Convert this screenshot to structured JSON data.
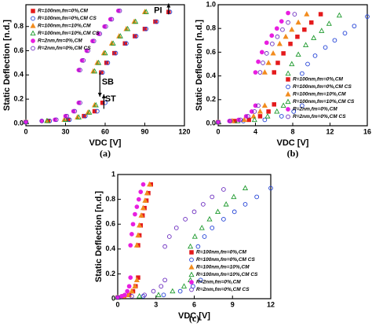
{
  "chart_data": [
    {
      "type": "scatter",
      "title": "(a)",
      "xlabel": "VDC [V]",
      "ylabel": "Static Deflection [n.d.]",
      "xlim": [
        0,
        120
      ],
      "xticks": [
        0,
        30,
        60,
        90,
        120
      ],
      "ylim": [
        -0.02,
        0.98
      ],
      "yticks": [
        {
          "value": 0,
          "label": "0.0"
        },
        0.2,
        0.4,
        0.6,
        0.8
      ],
      "legend": "upper left",
      "annotations": [
        "PI",
        "SB",
        "ST"
      ],
      "series": [
        {
          "name": "R=100nm,fm=0%,CM",
          "color": "#e41a1c",
          "marker": "square",
          "filled": true,
          "x": [
            0,
            17,
            32,
            44,
            52,
            58,
            57,
            61,
            67,
            75,
            82.5,
            90,
            98,
            108
          ],
          "values": [
            0.01,
            0.02,
            0.03,
            0.06,
            0.1,
            0.17,
            0.42,
            0.5,
            0.58,
            0.66,
            0.72,
            0.78,
            0.84,
            0.92
          ]
        },
        {
          "name": "R=100nm,fm=0%,CM CS",
          "color": "#1f3fd6",
          "marker": "circle",
          "filled": false,
          "x": [
            0,
            18,
            33,
            45,
            54,
            60,
            58,
            62,
            68,
            76,
            83.5,
            91,
            99,
            109
          ],
          "values": [
            0.01,
            0.02,
            0.03,
            0.06,
            0.1,
            0.17,
            0.42,
            0.5,
            0.58,
            0.66,
            0.72,
            0.78,
            0.84,
            0.92
          ]
        },
        {
          "name": "R=100nm,fm=10%,CM",
          "color": "#f28c1e",
          "marker": "triangle",
          "filled": true,
          "x": [
            0,
            16,
            29,
            39,
            47,
            52,
            51,
            54,
            59,
            65,
            70.5,
            76,
            82,
            90
          ],
          "values": [
            0.01,
            0.02,
            0.03,
            0.05,
            0.09,
            0.15,
            0.43,
            0.5,
            0.58,
            0.66,
            0.72,
            0.78,
            0.84,
            0.92
          ]
        },
        {
          "name": "R=100nm,fm=10%,CM CS",
          "color": "#1e9a2e",
          "marker": "triangle",
          "filled": false,
          "x": [
            0,
            16,
            30,
            40,
            48,
            53,
            52,
            55,
            60,
            66,
            71.5,
            77,
            83,
            91
          ],
          "values": [
            0.01,
            0.02,
            0.03,
            0.05,
            0.09,
            0.15,
            0.43,
            0.5,
            0.58,
            0.66,
            0.72,
            0.78,
            0.84,
            0.92
          ]
        },
        {
          "name": "R=2nm,fm=0%,CM",
          "color": "#e81ee0",
          "marker": "circle",
          "filled": true,
          "x": [
            0,
            12,
            22,
            30,
            36,
            40,
            40,
            42.5,
            46,
            50.5,
            55,
            59.5,
            64,
            70
          ],
          "values": [
            0.01,
            0.02,
            0.03,
            0.06,
            0.1,
            0.17,
            0.44,
            0.52,
            0.6,
            0.68,
            0.74,
            0.8,
            0.86,
            0.93
          ]
        },
        {
          "name": "R=2nm,fm=0%,CM CS",
          "color": "#6a2bbf",
          "marker": "circle",
          "filled": false,
          "x": [
            0,
            12,
            23,
            31,
            37,
            41,
            41,
            43.5,
            47,
            51.5,
            56,
            60.5,
            65,
            71
          ],
          "values": [
            0.01,
            0.02,
            0.03,
            0.06,
            0.1,
            0.17,
            0.44,
            0.52,
            0.6,
            0.68,
            0.74,
            0.8,
            0.86,
            0.93
          ]
        }
      ]
    },
    {
      "type": "scatter",
      "title": "(b)",
      "xlabel": "VDC [V]",
      "ylabel": "Static Deflection [n.d.]",
      "xlim": [
        0,
        16
      ],
      "xticks": [
        0,
        4,
        8,
        12,
        16
      ],
      "ylim": [
        -0.02,
        1.0
      ],
      "yticks": [
        {
          "value": 0,
          "label": "0.0"
        },
        0.2,
        0.4,
        0.6,
        0.8,
        {
          "value": 1,
          "label": "1.0"
        }
      ],
      "legend": "lower right",
      "series": [
        {
          "name": "R=100nm,fm=0%,CM",
          "color": "#e41a1c",
          "marker": "square",
          "filled": true,
          "x": [
            0,
            1.8,
            3.3,
            4.5,
            5.4,
            6,
            6,
            6.4,
            7,
            7.75,
            8.5,
            9.25,
            10,
            11
          ],
          "values": [
            0.01,
            0.02,
            0.03,
            0.06,
            0.1,
            0.16,
            0.43,
            0.51,
            0.59,
            0.67,
            0.73,
            0.79,
            0.85,
            0.92
          ]
        },
        {
          "name": "R=100nm,fm=0%,CM CS",
          "color": "#1f3fd6",
          "marker": "circle",
          "filled": false,
          "x": [
            0,
            2.7,
            5,
            6.8,
            8.1,
            9,
            9,
            9.6,
            10.4,
            11.5,
            12.5,
            13.6,
            14.6,
            16
          ],
          "values": [
            0.01,
            0.02,
            0.03,
            0.06,
            0.1,
            0.15,
            0.42,
            0.5,
            0.57,
            0.64,
            0.7,
            0.76,
            0.82,
            0.9
          ]
        },
        {
          "name": "R=100nm,fm=10%,CM",
          "color": "#f28c1e",
          "marker": "triangle",
          "filled": true,
          "x": [
            0,
            1.5,
            2.8,
            3.8,
            4.5,
            5,
            5,
            5.4,
            5.9,
            6.6,
            7.25,
            7.9,
            8.6,
            9.5
          ],
          "values": [
            0.01,
            0.02,
            0.03,
            0.06,
            0.1,
            0.15,
            0.43,
            0.51,
            0.59,
            0.67,
            0.73,
            0.79,
            0.85,
            0.92
          ]
        },
        {
          "name": "R=100nm,fm=10%,CM CS",
          "color": "#1e9a2e",
          "marker": "triangle",
          "filled": false,
          "x": [
            0,
            2.1,
            3.9,
            5.3,
            6.3,
            7,
            7.5,
            7.9,
            8.6,
            9.4,
            10.25,
            11.1,
            11.9,
            13
          ],
          "values": [
            0.01,
            0.02,
            0.03,
            0.06,
            0.1,
            0.15,
            0.42,
            0.5,
            0.58,
            0.66,
            0.72,
            0.78,
            0.84,
            0.91
          ]
        },
        {
          "name": "R=2nm,fm=0%,CM",
          "color": "#e81ee0",
          "marker": "circle",
          "filled": true,
          "x": [
            0,
            1.2,
            2.2,
            3,
            3.6,
            4,
            4,
            4.3,
            4.7,
            5.2,
            5.75,
            6.3,
            6.8,
            7.5
          ],
          "values": [
            0.01,
            0.02,
            0.03,
            0.06,
            0.1,
            0.15,
            0.43,
            0.52,
            0.6,
            0.68,
            0.74,
            0.8,
            0.86,
            0.93
          ]
        },
        {
          "name": "R=2nm,fm=0%,CM CS",
          "color": "#6a2bbf",
          "marker": "circle",
          "filled": false,
          "x": [
            0,
            1.3,
            2.4,
            3.2,
            3.9,
            4.3,
            4.5,
            4.8,
            5.2,
            5.8,
            6.35,
            6.9,
            7.5,
            8.2
          ],
          "values": [
            0.01,
            0.02,
            0.03,
            0.06,
            0.1,
            0.15,
            0.43,
            0.51,
            0.59,
            0.67,
            0.73,
            0.79,
            0.85,
            0.92
          ]
        }
      ]
    },
    {
      "type": "scatter",
      "title": "(c)",
      "xlabel": "VDC [V]",
      "ylabel": "Static Deflection [n.d.]",
      "xlim": [
        0,
        12
      ],
      "xticks": [
        0,
        3,
        6,
        9,
        12
      ],
      "ylim": [
        0,
        1
      ],
      "yticks": [
        0,
        0.2,
        0.4,
        0.6,
        0.8,
        1
      ],
      "legend": "lower right",
      "series": [
        {
          "name": "R=100nm,fm=0%,CM",
          "color": "#e41a1c",
          "marker": "square",
          "filled": true,
          "x": [
            0,
            0.5,
            0.9,
            1.2,
            1.4,
            1.6,
            1.6,
            1.7,
            1.8,
            1.95,
            2.1,
            2.25,
            2.4,
            2.6
          ],
          "values": [
            0.01,
            0.02,
            0.03,
            0.06,
            0.1,
            0.17,
            0.43,
            0.51,
            0.59,
            0.67,
            0.73,
            0.79,
            0.85,
            0.92
          ]
        },
        {
          "name": "R=100nm,fm=0%,CM CS",
          "color": "#1f3fd6",
          "marker": "circle",
          "filled": false,
          "x": [
            0,
            2,
            3.6,
            4.9,
            5.9,
            6.5,
            6.3,
            6.8,
            7.4,
            8.3,
            9.15,
            10,
            10.9,
            12
          ],
          "values": [
            0.01,
            0.02,
            0.03,
            0.06,
            0.1,
            0.15,
            0.42,
            0.5,
            0.57,
            0.64,
            0.7,
            0.76,
            0.82,
            0.89
          ]
        },
        {
          "name": "R=100nm,fm=10%,CM",
          "color": "#f28c1e",
          "marker": "triangle",
          "filled": true,
          "x": [
            0,
            0.45,
            0.85,
            1.1,
            1.35,
            1.5,
            1.5,
            1.6,
            1.7,
            1.85,
            2,
            2.15,
            2.3,
            2.5
          ],
          "values": [
            0.01,
            0.02,
            0.03,
            0.06,
            0.1,
            0.15,
            0.43,
            0.51,
            0.59,
            0.67,
            0.73,
            0.79,
            0.85,
            0.92
          ]
        },
        {
          "name": "R=100nm,fm=10%,CM CS",
          "color": "#1e9a2e",
          "marker": "triangle",
          "filled": false,
          "x": [
            0,
            1.7,
            3.2,
            4.3,
            5.2,
            5.7,
            5.7,
            6.05,
            6.6,
            7.2,
            7.85,
            8.5,
            9.1,
            10
          ],
          "values": [
            0.01,
            0.02,
            0.03,
            0.06,
            0.1,
            0.15,
            0.42,
            0.5,
            0.57,
            0.64,
            0.7,
            0.76,
            0.82,
            0.89
          ]
        },
        {
          "name": "R=2nm,fm=0%,CM",
          "color": "#e81ee0",
          "marker": "circle",
          "filled": true,
          "x": [
            0,
            0.3,
            0.55,
            0.75,
            0.9,
            1,
            1,
            1.1,
            1.2,
            1.35,
            1.5,
            1.65,
            1.8,
            2
          ],
          "values": [
            0.01,
            0.02,
            0.03,
            0.06,
            0.1,
            0.17,
            0.43,
            0.52,
            0.6,
            0.68,
            0.74,
            0.8,
            0.86,
            0.92
          ]
        },
        {
          "name": "R=2nm,fm=0%,CM CS",
          "color": "#6a2bbf",
          "marker": "circle",
          "filled": false,
          "x": [
            0,
            1.1,
            2.1,
            2.8,
            3.4,
            3.7,
            3.7,
            4.05,
            4.6,
            5.3,
            6,
            6.7,
            7.4,
            8.3
          ],
          "values": [
            0.01,
            0.02,
            0.03,
            0.06,
            0.1,
            0.15,
            0.42,
            0.5,
            0.57,
            0.64,
            0.7,
            0.76,
            0.82,
            0.88
          ]
        }
      ]
    }
  ]
}
